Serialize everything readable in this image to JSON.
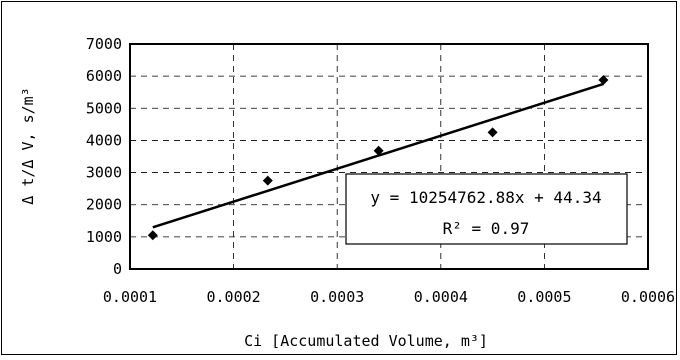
{
  "chart_data": {
    "type": "scatter",
    "xlabel": "Ci [Accumulated Volume, m³]",
    "ylabel": "Δ t/Δ V, s/m³",
    "xlim": [
      0.0001,
      0.0006
    ],
    "ylim": [
      0,
      7000
    ],
    "x_ticks": [
      "0.0001",
      "0.0002",
      "0.0003",
      "0.0004",
      "0.0005",
      "0.0006"
    ],
    "y_ticks": [
      "0",
      "1000",
      "2000",
      "3000",
      "4000",
      "5000",
      "6000",
      "7000"
    ],
    "points": [
      {
        "x": 0.000122,
        "y": 1050
      },
      {
        "x": 0.000233,
        "y": 2750
      },
      {
        "x": 0.00034,
        "y": 3680
      },
      {
        "x": 0.00045,
        "y": 4250
      },
      {
        "x": 0.000557,
        "y": 5880
      }
    ],
    "trendline": {
      "slope": 10254762.88,
      "intercept": 44.34,
      "x_start": 0.000122,
      "x_end": 0.000557
    },
    "equation_label": "y = 10254762.88x + 44.34",
    "r2_label": "R² = 0.97",
    "grid": true,
    "grid_style": "dashed"
  }
}
